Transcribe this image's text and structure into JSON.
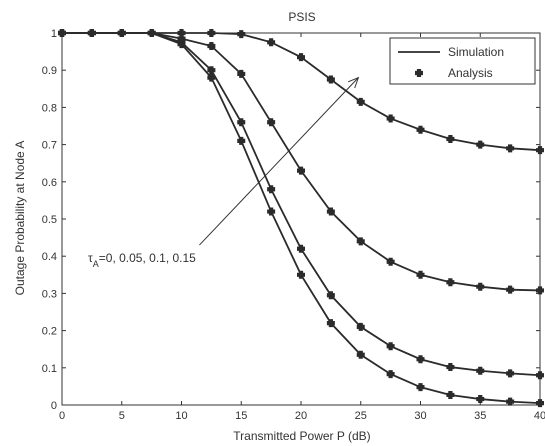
{
  "chart_data": {
    "type": "line",
    "title": "PSIS",
    "xlabel": "Transmitted Power P (dB)",
    "ylabel": "Outage Probability at Node A",
    "xlim": [
      0,
      40
    ],
    "ylim": [
      0,
      1
    ],
    "xticks": [
      0,
      5,
      10,
      15,
      20,
      25,
      30,
      35,
      40
    ],
    "xtick_labels": [
      "0",
      "5",
      "10",
      "15",
      "20",
      "25",
      "30",
      "35",
      "40"
    ],
    "yticks": [
      0,
      0.1,
      0.2,
      0.3,
      0.4,
      0.5,
      0.6,
      0.7,
      0.8,
      0.9,
      1
    ],
    "ytick_labels": [
      "0",
      "0.1",
      "0.2",
      "0.3",
      "0.4",
      "0.5",
      "0.6",
      "0.7",
      "0.8",
      "0.9",
      "1"
    ],
    "grid": false,
    "legend": {
      "placement": "top-right",
      "entries": [
        {
          "label": "Simulation",
          "style": "line"
        },
        {
          "label": "Analysis",
          "style": "marker"
        }
      ]
    },
    "annotation": {
      "symbol": "τ",
      "subscript": "A",
      "text": "=0, 0.05, 0.1, 0.15",
      "arrow_from": [
        11.5,
        0.43
      ],
      "arrow_to": [
        24.8,
        0.88
      ]
    },
    "x": [
      0,
      2.5,
      5,
      7.5,
      10,
      12.5,
      15,
      17.5,
      20,
      22.5,
      25,
      27.5,
      30,
      32.5,
      35,
      37.5,
      40
    ],
    "series": [
      {
        "param": "0",
        "values": [
          1,
          1,
          1,
          1,
          0.97,
          0.88,
          0.71,
          0.52,
          0.35,
          0.22,
          0.135,
          0.083,
          0.048,
          0.027,
          0.016,
          0.009,
          0.005
        ]
      },
      {
        "param": "0.05",
        "values": [
          1,
          1,
          1,
          1,
          0.975,
          0.9,
          0.76,
          0.58,
          0.42,
          0.295,
          0.21,
          0.158,
          0.123,
          0.102,
          0.092,
          0.085,
          0.08
        ]
      },
      {
        "param": "0.1",
        "values": [
          1,
          1,
          1,
          1,
          0.985,
          0.965,
          0.89,
          0.76,
          0.63,
          0.52,
          0.44,
          0.385,
          0.35,
          0.33,
          0.318,
          0.31,
          0.308
        ]
      },
      {
        "param": "0.15",
        "values": [
          1,
          1,
          1,
          1,
          1,
          1,
          0.997,
          0.975,
          0.935,
          0.875,
          0.815,
          0.77,
          0.74,
          0.715,
          0.7,
          0.69,
          0.685
        ]
      }
    ],
    "colors": {
      "line": "#2b2b2b",
      "marker": "#2b2b2b",
      "axes": "#333333",
      "background": "#ffffff"
    }
  }
}
